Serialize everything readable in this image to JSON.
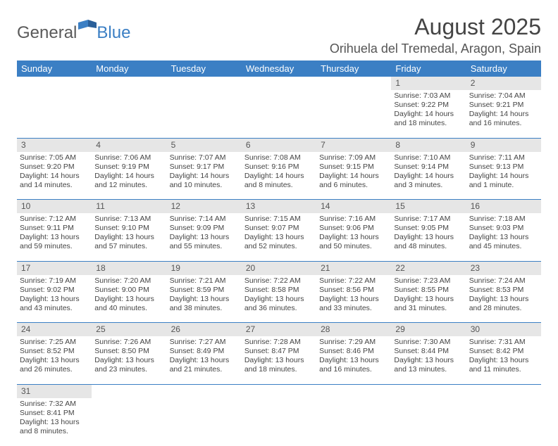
{
  "logo": {
    "text1": "General",
    "text2": "Blue",
    "color1": "#5a5a5a",
    "color2": "#3b7fc4"
  },
  "title": "August 2025",
  "location": "Orihuela del Tremedal, Aragon, Spain",
  "weekdays": [
    "Sunday",
    "Monday",
    "Tuesday",
    "Wednesday",
    "Thursday",
    "Friday",
    "Saturday"
  ],
  "style": {
    "header_bg": "#3b7fc4",
    "header_fg": "#ffffff",
    "daynum_bg": "#e6e6e6",
    "cell_border": "#3b7fc4",
    "title_fontsize": 32,
    "location_fontsize": 18,
    "weekday_fontsize": 13,
    "cell_fontsize": 10.5
  },
  "days": {
    "1": {
      "sunrise": "7:03 AM",
      "sunset": "9:22 PM",
      "daylight": "14 hours and 18 minutes."
    },
    "2": {
      "sunrise": "7:04 AM",
      "sunset": "9:21 PM",
      "daylight": "14 hours and 16 minutes."
    },
    "3": {
      "sunrise": "7:05 AM",
      "sunset": "9:20 PM",
      "daylight": "14 hours and 14 minutes."
    },
    "4": {
      "sunrise": "7:06 AM",
      "sunset": "9:19 PM",
      "daylight": "14 hours and 12 minutes."
    },
    "5": {
      "sunrise": "7:07 AM",
      "sunset": "9:17 PM",
      "daylight": "14 hours and 10 minutes."
    },
    "6": {
      "sunrise": "7:08 AM",
      "sunset": "9:16 PM",
      "daylight": "14 hours and 8 minutes."
    },
    "7": {
      "sunrise": "7:09 AM",
      "sunset": "9:15 PM",
      "daylight": "14 hours and 6 minutes."
    },
    "8": {
      "sunrise": "7:10 AM",
      "sunset": "9:14 PM",
      "daylight": "14 hours and 3 minutes."
    },
    "9": {
      "sunrise": "7:11 AM",
      "sunset": "9:13 PM",
      "daylight": "14 hours and 1 minute."
    },
    "10": {
      "sunrise": "7:12 AM",
      "sunset": "9:11 PM",
      "daylight": "13 hours and 59 minutes."
    },
    "11": {
      "sunrise": "7:13 AM",
      "sunset": "9:10 PM",
      "daylight": "13 hours and 57 minutes."
    },
    "12": {
      "sunrise": "7:14 AM",
      "sunset": "9:09 PM",
      "daylight": "13 hours and 55 minutes."
    },
    "13": {
      "sunrise": "7:15 AM",
      "sunset": "9:07 PM",
      "daylight": "13 hours and 52 minutes."
    },
    "14": {
      "sunrise": "7:16 AM",
      "sunset": "9:06 PM",
      "daylight": "13 hours and 50 minutes."
    },
    "15": {
      "sunrise": "7:17 AM",
      "sunset": "9:05 PM",
      "daylight": "13 hours and 48 minutes."
    },
    "16": {
      "sunrise": "7:18 AM",
      "sunset": "9:03 PM",
      "daylight": "13 hours and 45 minutes."
    },
    "17": {
      "sunrise": "7:19 AM",
      "sunset": "9:02 PM",
      "daylight": "13 hours and 43 minutes."
    },
    "18": {
      "sunrise": "7:20 AM",
      "sunset": "9:00 PM",
      "daylight": "13 hours and 40 minutes."
    },
    "19": {
      "sunrise": "7:21 AM",
      "sunset": "8:59 PM",
      "daylight": "13 hours and 38 minutes."
    },
    "20": {
      "sunrise": "7:22 AM",
      "sunset": "8:58 PM",
      "daylight": "13 hours and 36 minutes."
    },
    "21": {
      "sunrise": "7:22 AM",
      "sunset": "8:56 PM",
      "daylight": "13 hours and 33 minutes."
    },
    "22": {
      "sunrise": "7:23 AM",
      "sunset": "8:55 PM",
      "daylight": "13 hours and 31 minutes."
    },
    "23": {
      "sunrise": "7:24 AM",
      "sunset": "8:53 PM",
      "daylight": "13 hours and 28 minutes."
    },
    "24": {
      "sunrise": "7:25 AM",
      "sunset": "8:52 PM",
      "daylight": "13 hours and 26 minutes."
    },
    "25": {
      "sunrise": "7:26 AM",
      "sunset": "8:50 PM",
      "daylight": "13 hours and 23 minutes."
    },
    "26": {
      "sunrise": "7:27 AM",
      "sunset": "8:49 PM",
      "daylight": "13 hours and 21 minutes."
    },
    "27": {
      "sunrise": "7:28 AM",
      "sunset": "8:47 PM",
      "daylight": "13 hours and 18 minutes."
    },
    "28": {
      "sunrise": "7:29 AM",
      "sunset": "8:46 PM",
      "daylight": "13 hours and 16 minutes."
    },
    "29": {
      "sunrise": "7:30 AM",
      "sunset": "8:44 PM",
      "daylight": "13 hours and 13 minutes."
    },
    "30": {
      "sunrise": "7:31 AM",
      "sunset": "8:42 PM",
      "daylight": "13 hours and 11 minutes."
    },
    "31": {
      "sunrise": "7:32 AM",
      "sunset": "8:41 PM",
      "daylight": "13 hours and 8 minutes."
    }
  },
  "labels": {
    "sunrise": "Sunrise:",
    "sunset": "Sunset:",
    "daylight": "Daylight:"
  },
  "grid": [
    [
      null,
      null,
      null,
      null,
      null,
      "1",
      "2"
    ],
    [
      "3",
      "4",
      "5",
      "6",
      "7",
      "8",
      "9"
    ],
    [
      "10",
      "11",
      "12",
      "13",
      "14",
      "15",
      "16"
    ],
    [
      "17",
      "18",
      "19",
      "20",
      "21",
      "22",
      "23"
    ],
    [
      "24",
      "25",
      "26",
      "27",
      "28",
      "29",
      "30"
    ],
    [
      "31",
      null,
      null,
      null,
      null,
      null,
      null
    ]
  ]
}
